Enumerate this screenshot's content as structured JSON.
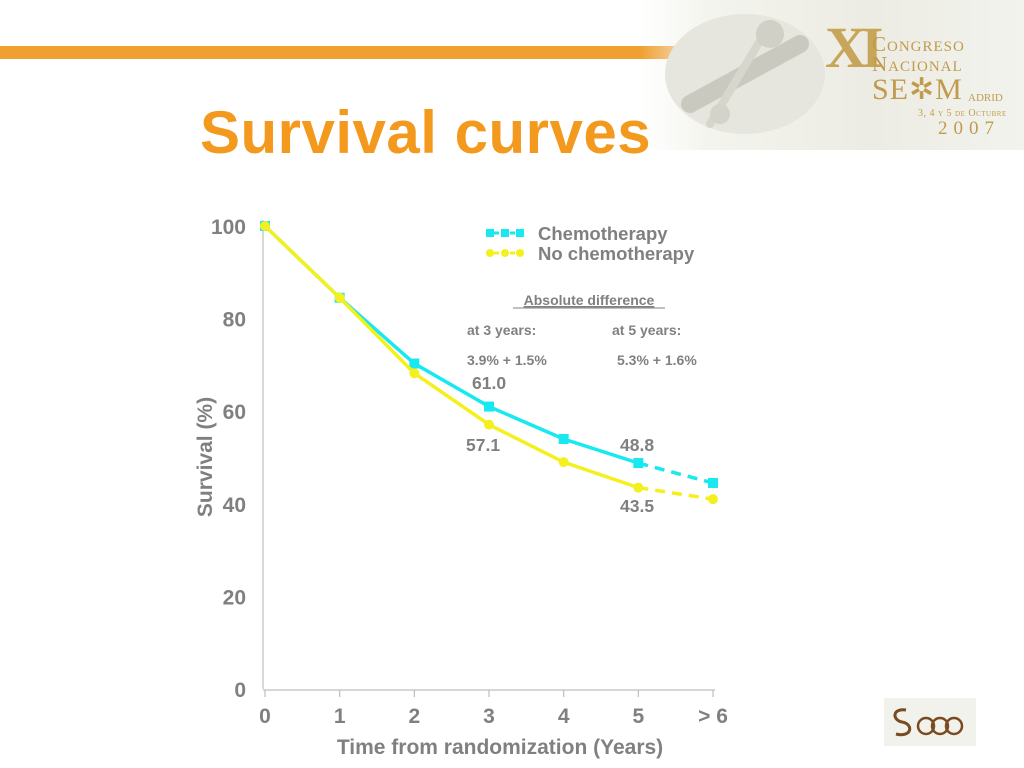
{
  "slide": {
    "title": "Survival curves"
  },
  "banner": {
    "roman": "XI",
    "line1": "Congreso",
    "line2": "Nacional",
    "seom": "SE✲M",
    "city": "adrid",
    "dates": "3, 4 y 5 de Octubre",
    "year": "2007"
  },
  "logo": {
    "text": "SEOM"
  },
  "colors": {
    "title": "#f39a1e",
    "bar": "#f0a030",
    "chemotherapy": "#18e8f0",
    "no_chemotherapy": "#f4f01e",
    "axis_text": "#808080"
  },
  "chart_data": {
    "type": "line",
    "xlabel": "Time from randomization (Years)",
    "ylabel": "Survival (%)",
    "xlim": [
      0,
      6
    ],
    "ylim": [
      0,
      100
    ],
    "x_ticks": [
      "0",
      "1",
      "2",
      "3",
      "4",
      "5",
      "> 6"
    ],
    "y_ticks": [
      "0",
      "20",
      "40",
      "60",
      "80",
      "100"
    ],
    "grid": false,
    "legend_position": "top-right",
    "series": [
      {
        "name": "Chemotherapy",
        "color": "#18e8f0",
        "marker": "square",
        "x": [
          0,
          1,
          2,
          3,
          4,
          5
        ],
        "values": [
          100,
          84.5,
          70.3,
          61.0,
          54.0,
          48.8
        ],
        "extrapolated": {
          "x": [
            5,
            6
          ],
          "values": [
            48.8,
            44.5
          ]
        }
      },
      {
        "name": "No chemotherapy",
        "color": "#f4f01e",
        "marker": "circle",
        "x": [
          0,
          1,
          2,
          3,
          4,
          5
        ],
        "values": [
          100,
          84.5,
          68.2,
          57.1,
          49.0,
          43.5
        ],
        "extrapolated": {
          "x": [
            5,
            6
          ],
          "values": [
            43.5,
            41.0
          ]
        }
      }
    ],
    "annotations": {
      "heading": "Absolute difference",
      "at3_label": "at 3 years:",
      "at5_label": "at 5 years:",
      "at3_value": "3.9% + 1.5%",
      "at5_value": "5.3% + 1.6%",
      "data_labels": [
        "61.0",
        "57.1",
        "48.8",
        "43.5"
      ]
    }
  }
}
